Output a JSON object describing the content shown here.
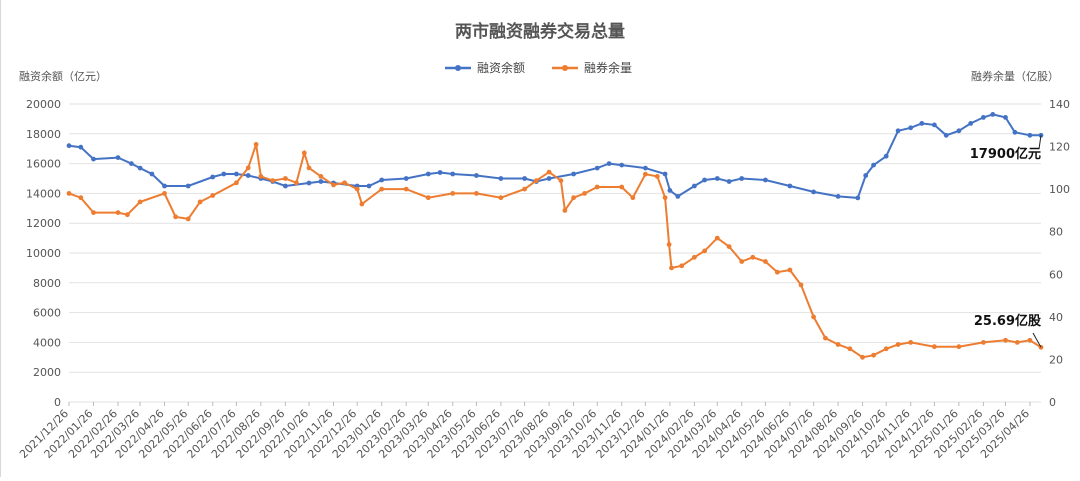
{
  "chart_data": {
    "type": "line",
    "title": "两市融资融券交易总量",
    "left_axis_label": "融资余额（亿元）",
    "right_axis_label": "融券余量（亿股）",
    "left_ylim": [
      0,
      20000
    ],
    "left_yticks": [
      0,
      2000,
      4000,
      6000,
      8000,
      10000,
      12000,
      14000,
      16000,
      18000,
      20000
    ],
    "right_ylim": [
      0,
      140
    ],
    "right_yticks": [
      0,
      20,
      40,
      60,
      80,
      100,
      120,
      140
    ],
    "grid": true,
    "legend_position": "top-center",
    "x_ticks": [
      "2021/12/26",
      "2022/01/26",
      "2022/02/26",
      "2022/03/26",
      "2022/04/26",
      "2022/05/26",
      "2022/06/26",
      "2022/07/26",
      "2022/08/26",
      "2022/09/26",
      "2022/10/26",
      "2022/11/26",
      "2022/12/26",
      "2023/01/26",
      "2023/02/26",
      "2023/03/26",
      "2023/04/26",
      "2023/05/26",
      "2023/06/26",
      "2023/07/26",
      "2023/08/26",
      "2023/09/26",
      "2023/10/26",
      "2023/11/26",
      "2023/12/26",
      "2024/01/26",
      "2024/02/26",
      "2024/03/26",
      "2024/04/26",
      "2024/05/26",
      "2024/06/26",
      "2024/07/26",
      "2024/08/26",
      "2024/09/26",
      "2024/10/26",
      "2024/11/26",
      "2024/12/26",
      "2025/01/26",
      "2025/02/26",
      "2025/03/26",
      "2025/04/26"
    ],
    "series": [
      {
        "name": "融资余额",
        "axis": "left",
        "color": "#4472c4",
        "points": [
          [
            "2021/12/26",
            17200
          ],
          [
            "2022/01/10",
            17100
          ],
          [
            "2022/01/26",
            16300
          ],
          [
            "2022/02/26",
            16400
          ],
          [
            "2022/03/15",
            16000
          ],
          [
            "2022/03/26",
            15700
          ],
          [
            "2022/04/10",
            15300
          ],
          [
            "2022/04/26",
            14500
          ],
          [
            "2022/05/26",
            14500
          ],
          [
            "2022/06/26",
            15100
          ],
          [
            "2022/07/10",
            15300
          ],
          [
            "2022/07/26",
            15300
          ],
          [
            "2022/08/10",
            15200
          ],
          [
            "2022/08/26",
            15000
          ],
          [
            "2022/09/10",
            14800
          ],
          [
            "2022/09/26",
            14500
          ],
          [
            "2022/10/26",
            14700
          ],
          [
            "2022/11/10",
            14800
          ],
          [
            "2022/11/26",
            14700
          ],
          [
            "2022/12/26",
            14500
          ],
          [
            "2023/01/10",
            14500
          ],
          [
            "2023/01/26",
            14900
          ],
          [
            "2023/02/26",
            15000
          ],
          [
            "2023/03/26",
            15300
          ],
          [
            "2023/04/10",
            15400
          ],
          [
            "2023/04/26",
            15300
          ],
          [
            "2023/05/26",
            15200
          ],
          [
            "2023/06/26",
            15000
          ],
          [
            "2023/07/26",
            15000
          ],
          [
            "2023/08/10",
            14800
          ],
          [
            "2023/08/26",
            15000
          ],
          [
            "2023/09/26",
            15300
          ],
          [
            "2023/10/26",
            15700
          ],
          [
            "2023/11/10",
            16000
          ],
          [
            "2023/11/26",
            15900
          ],
          [
            "2023/12/26",
            15700
          ],
          [
            "2024/01/20",
            15300
          ],
          [
            "2024/01/26",
            14200
          ],
          [
            "2024/02/05",
            13800
          ],
          [
            "2024/02/26",
            14500
          ],
          [
            "2024/03/10",
            14900
          ],
          [
            "2024/03/26",
            15000
          ],
          [
            "2024/04/10",
            14800
          ],
          [
            "2024/04/26",
            15000
          ],
          [
            "2024/05/26",
            14900
          ],
          [
            "2024/06/26",
            14500
          ],
          [
            "2024/07/26",
            14100
          ],
          [
            "2024/08/26",
            13800
          ],
          [
            "2024/09/20",
            13700
          ],
          [
            "2024/09/30",
            15200
          ],
          [
            "2024/10/10",
            15900
          ],
          [
            "2024/10/26",
            16500
          ],
          [
            "2024/11/10",
            18200
          ],
          [
            "2024/11/26",
            18400
          ],
          [
            "2024/12/10",
            18700
          ],
          [
            "2024/12/26",
            18600
          ],
          [
            "2025/01/10",
            17900
          ],
          [
            "2025/01/26",
            18200
          ],
          [
            "2025/02/10",
            18700
          ],
          [
            "2025/02/26",
            19100
          ],
          [
            "2025/03/10",
            19300
          ],
          [
            "2025/03/26",
            19100
          ],
          [
            "2025/04/07",
            18100
          ],
          [
            "2025/04/26",
            17900
          ],
          [
            "2025/05/10",
            17900
          ]
        ]
      },
      {
        "name": "融券余量",
        "axis": "right",
        "color": "#ed7d31",
        "points": [
          [
            "2021/12/26",
            98
          ],
          [
            "2022/01/10",
            96
          ],
          [
            "2022/01/26",
            89
          ],
          [
            "2022/02/26",
            89
          ],
          [
            "2022/03/10",
            88
          ],
          [
            "2022/03/26",
            94
          ],
          [
            "2022/04/26",
            98
          ],
          [
            "2022/05/10",
            87
          ],
          [
            "2022/05/26",
            86
          ],
          [
            "2022/06/10",
            94
          ],
          [
            "2022/06/26",
            97
          ],
          [
            "2022/07/26",
            103
          ],
          [
            "2022/08/10",
            110
          ],
          [
            "2022/08/20",
            121
          ],
          [
            "2022/08/26",
            106
          ],
          [
            "2022/09/10",
            104
          ],
          [
            "2022/09/26",
            105
          ],
          [
            "2022/10/10",
            103
          ],
          [
            "2022/10/20",
            117
          ],
          [
            "2022/10/26",
            110
          ],
          [
            "2022/11/10",
            106
          ],
          [
            "2022/11/26",
            102
          ],
          [
            "2022/12/10",
            103
          ],
          [
            "2022/12/26",
            100
          ],
          [
            "2023/01/01",
            93
          ],
          [
            "2023/01/26",
            100
          ],
          [
            "2023/02/26",
            100
          ],
          [
            "2023/03/26",
            96
          ],
          [
            "2023/04/26",
            98
          ],
          [
            "2023/05/26",
            98
          ],
          [
            "2023/06/26",
            96
          ],
          [
            "2023/07/26",
            100
          ],
          [
            "2023/08/10",
            104
          ],
          [
            "2023/08/26",
            108
          ],
          [
            "2023/09/10",
            104
          ],
          [
            "2023/09/15",
            90
          ],
          [
            "2023/09/26",
            96
          ],
          [
            "2023/10/10",
            98
          ],
          [
            "2023/10/26",
            101
          ],
          [
            "2023/11/26",
            101
          ],
          [
            "2023/12/10",
            96
          ],
          [
            "2023/12/26",
            107
          ],
          [
            "2024/01/10",
            106
          ],
          [
            "2024/01/20",
            96
          ],
          [
            "2024/01/25",
            74
          ],
          [
            "2024/01/28",
            63
          ],
          [
            "2024/02/10",
            64
          ],
          [
            "2024/02/26",
            68
          ],
          [
            "2024/03/10",
            71
          ],
          [
            "2024/03/26",
            77
          ],
          [
            "2024/04/10",
            73
          ],
          [
            "2024/04/26",
            66
          ],
          [
            "2024/05/10",
            68
          ],
          [
            "2024/05/26",
            66
          ],
          [
            "2024/06/10",
            61
          ],
          [
            "2024/06/26",
            62
          ],
          [
            "2024/07/10",
            55
          ],
          [
            "2024/07/26",
            40
          ],
          [
            "2024/08/10",
            30
          ],
          [
            "2024/08/26",
            27
          ],
          [
            "2024/09/10",
            25
          ],
          [
            "2024/09/26",
            21
          ],
          [
            "2024/10/10",
            22
          ],
          [
            "2024/10/26",
            25
          ],
          [
            "2024/11/10",
            27
          ],
          [
            "2024/11/26",
            28
          ],
          [
            "2024/12/26",
            26
          ],
          [
            "2025/01/26",
            26
          ],
          [
            "2025/02/26",
            28
          ],
          [
            "2025/03/26",
            29
          ],
          [
            "2025/04/10",
            28
          ],
          [
            "2025/04/26",
            29
          ],
          [
            "2025/05/10",
            25.69
          ]
        ]
      }
    ],
    "annotations": [
      {
        "text": "17900亿元",
        "axis": "left",
        "x": "2025/05/10",
        "y": 17900
      },
      {
        "text": "25.69亿股",
        "axis": "right",
        "x": "2025/05/10",
        "y": 25.69
      }
    ]
  }
}
